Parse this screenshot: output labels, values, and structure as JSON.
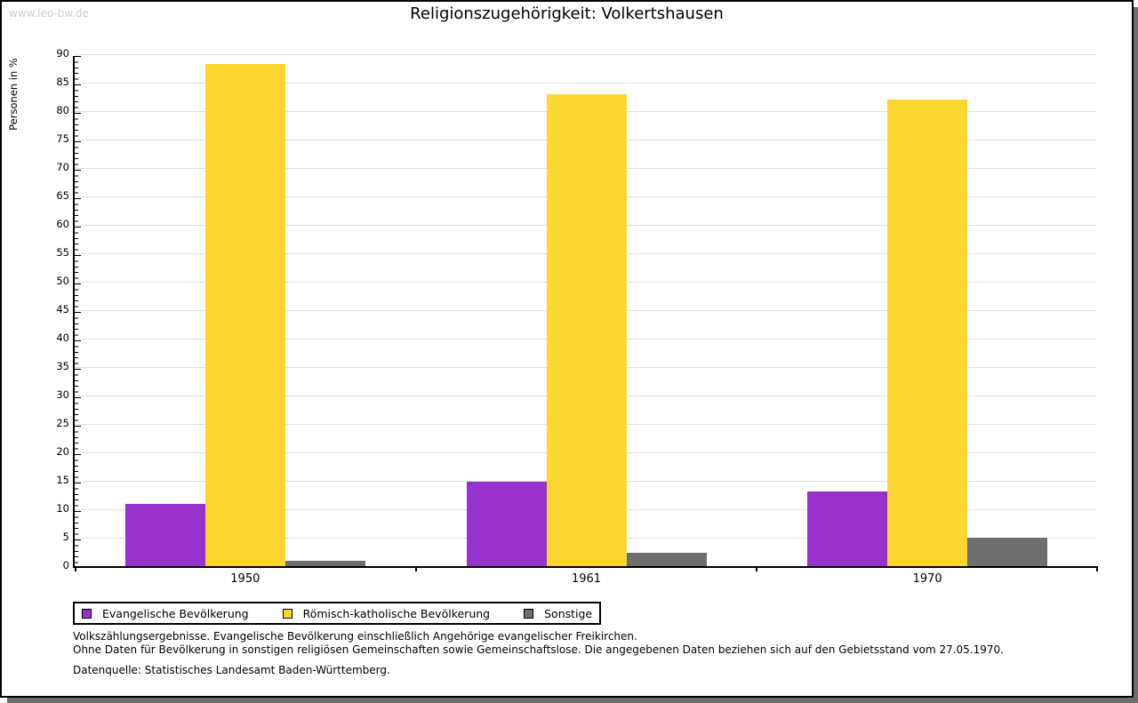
{
  "watermark": "www.leo-bw.de",
  "title": "Religionszugehörigkeit: Volkertshausen",
  "notes": {
    "line1": "Volkszählungsergebnisse. Evangelische Bevölkerung einschließlich Angehörige evangelischer Freikirchen.",
    "line2": "Ohne Daten für Bevölkerung in sonstigen religiösen Gemeinschaften sowie Gemeinschaftslose. Die angegebenen Daten beziehen sich auf den Gebietsstand vom 27.05.1970.",
    "source": "Datenquelle: Statistisches Landesamt Baden-Württemberg."
  },
  "chart_data": {
    "type": "bar",
    "title": "Religionszugehörigkeit: Volkertshausen",
    "xlabel": "",
    "ylabel": "Personen in %",
    "ylim": [
      0,
      90
    ],
    "ytick_step": 5,
    "minor_tick_step": 1,
    "grid": true,
    "legend_position": "bottom-left",
    "categories": [
      "1950",
      "1961",
      "1970"
    ],
    "series": [
      {
        "name": "Evangelische Bevölkerung",
        "color": "#9932CC",
        "values": [
          10.9,
          14.8,
          13.1
        ]
      },
      {
        "name": "Römisch-katholische Bevölkerung",
        "color": "#FCD530",
        "values": [
          88.3,
          82.9,
          82.1
        ]
      },
      {
        "name": "Sonstige",
        "color": "#6E6E6E",
        "values": [
          0.9,
          2.3,
          5.0
        ]
      }
    ],
    "colors": {
      "grid": "#e0e0e0",
      "axis": "#000000",
      "frame_shadow": "#6e6e6e",
      "watermark_text": "#cccccc"
    }
  }
}
